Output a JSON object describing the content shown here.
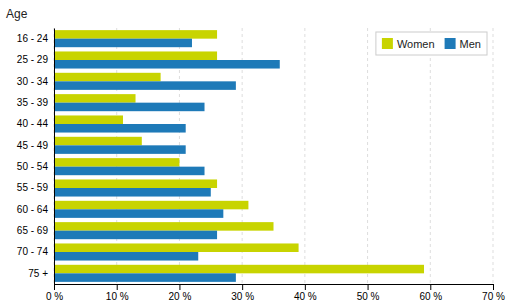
{
  "chart_data": {
    "type": "bar",
    "orientation": "horizontal",
    "ylabel": "Age",
    "categories": [
      "16 - 24",
      "25 - 29",
      "30 - 34",
      "35 - 39",
      "40 - 44",
      "45 - 49",
      "50 - 54",
      "55 - 59",
      "60 - 64",
      "65 - 69",
      "70 - 74",
      "75 +"
    ],
    "series": [
      {
        "name": "Women",
        "color": "#c8d400",
        "values": [
          26,
          26,
          17,
          13,
          11,
          14,
          20,
          26,
          31,
          35,
          39,
          59
        ]
      },
      {
        "name": "Men",
        "color": "#1e7ab8",
        "values": [
          22,
          36,
          29,
          24,
          21,
          21,
          24,
          25,
          27,
          26,
          23,
          29
        ]
      }
    ],
    "xlim": [
      0,
      70
    ],
    "xticks": [
      {
        "value": 0,
        "label": "0 %"
      },
      {
        "value": 10,
        "label": "10 %"
      },
      {
        "value": 20,
        "label": "20 %"
      },
      {
        "value": 30,
        "label": "30 %"
      },
      {
        "value": 40,
        "label": "40 %"
      },
      {
        "value": 50,
        "label": "50 %"
      },
      {
        "value": 60,
        "label": "60 %"
      },
      {
        "value": 70,
        "label": "70 %"
      }
    ],
    "grid": true,
    "legend": "upper right"
  }
}
